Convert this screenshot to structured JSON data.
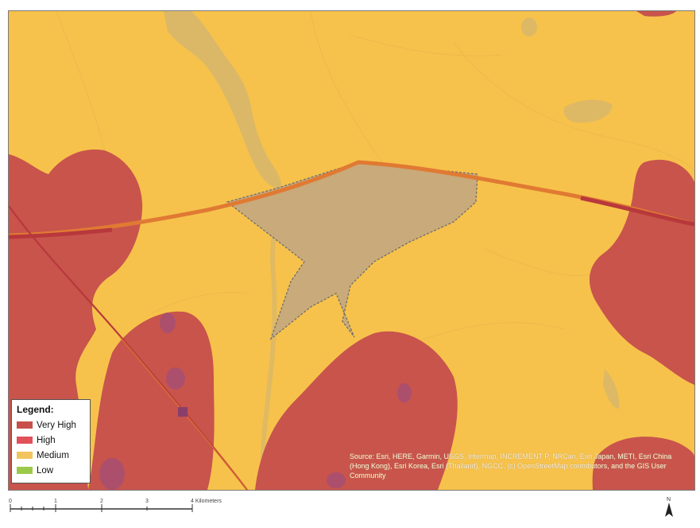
{
  "legend": {
    "title": "Legend:",
    "items": [
      {
        "label": "Very High",
        "color": "#c8504a"
      },
      {
        "label": "High",
        "color": "#e0515a"
      },
      {
        "label": "Medium",
        "color": "#f2c45e"
      },
      {
        "label": "Low",
        "color": "#9cc94a"
      }
    ]
  },
  "attribution": "Source: Esri, HERE, Garmin, USGS, Intermap, INCREMENT P, NRCan, Esri Japan, METI, Esri China (Hong Kong), Esri Korea, Esri (Thailand), NGCC, (c) OpenStreetMap contributors, and the GIS User Community",
  "scale_bar": {
    "ticks": [
      "0",
      "1",
      "2",
      "3",
      "4 Kilometers"
    ]
  },
  "north_arrow": {
    "label": "N"
  },
  "colors": {
    "medium_fill": "#f7c24b",
    "very_high_fill": "#c8544c",
    "site_fill": "#c9aa7a",
    "water": "#d8b36a",
    "road": "#e07a33",
    "rail": "#b8383c",
    "purple_spot": "#a34e78"
  }
}
